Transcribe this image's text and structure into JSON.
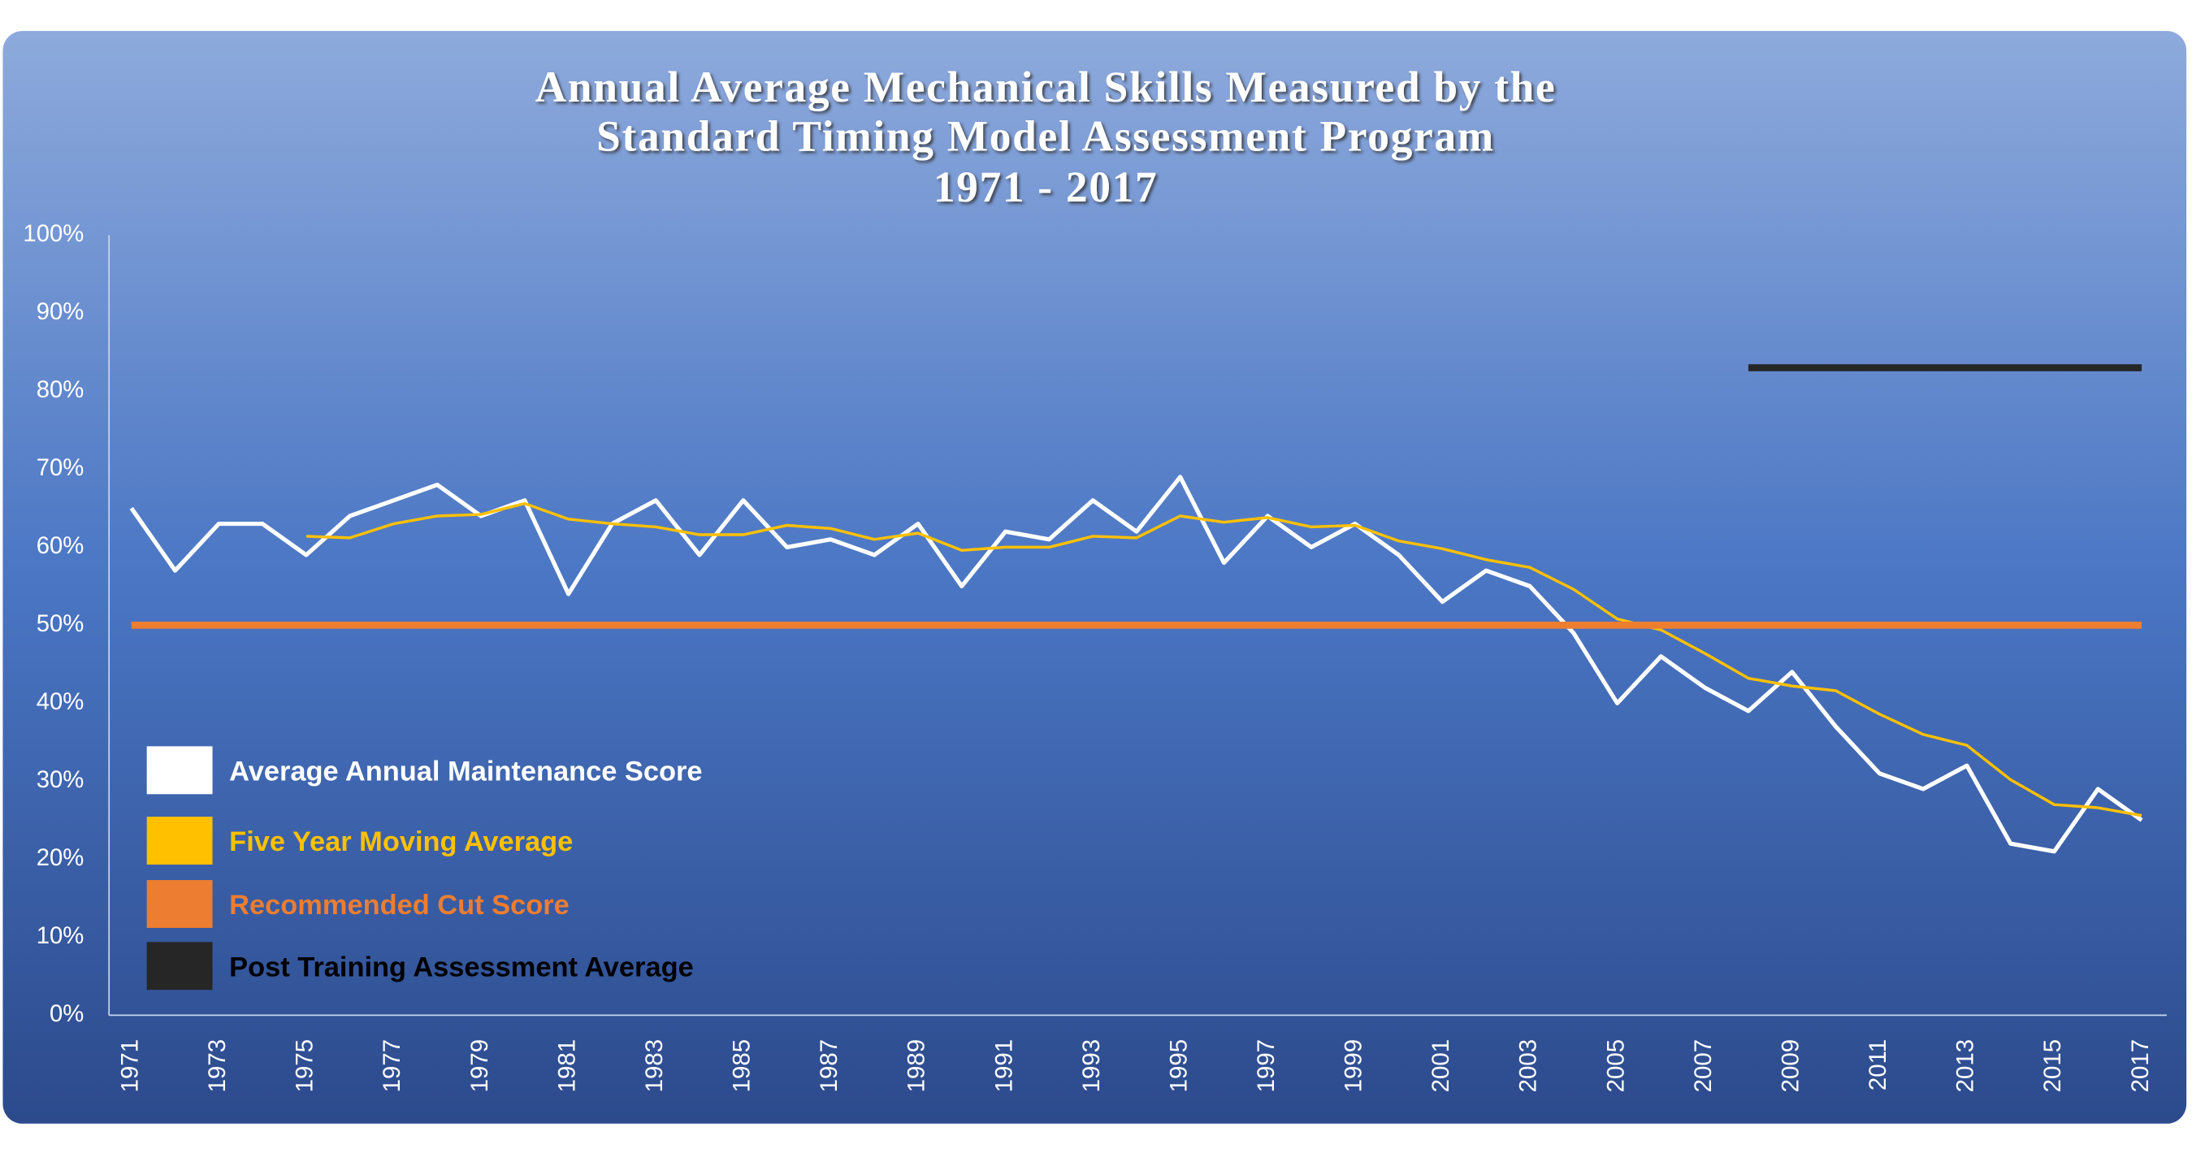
{
  "chart_data": {
    "type": "line",
    "title": [
      "Annual Average Mechanical Skills Measured by the",
      "Standard Timing Model Assessment Program",
      "1971 - 2017"
    ],
    "categories": [
      "1971",
      null,
      "1973",
      null,
      "1975",
      null,
      "1977",
      null,
      "1979",
      null,
      "1981",
      null,
      "1983",
      null,
      "1985",
      null,
      "1987",
      null,
      "1989",
      null,
      "1991",
      null,
      "1993",
      null,
      "1995",
      null,
      "1997",
      null,
      "1999",
      null,
      "2001",
      null,
      "2003",
      null,
      "2005",
      null,
      "2007",
      null,
      "2009",
      null,
      "2011",
      null,
      "2013",
      null,
      "2015",
      null,
      "2017"
    ],
    "series": [
      {
        "name": "Average Annual Maintenance Score",
        "color": "#ffffff",
        "width": 3,
        "values": [
          65,
          57,
          63,
          63,
          59,
          64,
          66,
          68,
          64,
          66,
          54,
          63,
          66,
          59,
          66,
          60,
          61,
          59,
          63,
          55,
          62,
          61,
          66,
          62,
          69,
          58,
          64,
          60,
          63,
          59,
          53,
          57,
          55,
          49,
          40,
          46,
          42,
          39,
          44,
          37,
          31,
          29,
          32,
          22,
          21,
          29,
          25
        ]
      },
      {
        "name": "Five Year Moving Average",
        "color": "#ffc000",
        "width": 2,
        "values": [
          null,
          null,
          null,
          null,
          61.4,
          61.2,
          63,
          64,
          64.2,
          65.6,
          63.6,
          63,
          62.6,
          61.6,
          61.6,
          62.8,
          62.4,
          61,
          61.8,
          59.6,
          60,
          60,
          61.4,
          61.2,
          64,
          63.2,
          63.8,
          62.6,
          62.8,
          60.8,
          59.8,
          58.4,
          57.4,
          54.6,
          50.8,
          49.4,
          46.4,
          43.2,
          42.2,
          41.6,
          38.6,
          36,
          34.6,
          30.2,
          27,
          26.6,
          25.6
        ]
      },
      {
        "name": "Recommended Cut Score",
        "color": "#ed7d31",
        "width": 5,
        "values": [
          50,
          50,
          50,
          50,
          50,
          50,
          50,
          50,
          50,
          50,
          50,
          50,
          50,
          50,
          50,
          50,
          50,
          50,
          50,
          50,
          50,
          50,
          50,
          50,
          50,
          50,
          50,
          50,
          50,
          50,
          50,
          50,
          50,
          50,
          50,
          50,
          50,
          50,
          50,
          50,
          50,
          50,
          50,
          50,
          50,
          50,
          50
        ]
      },
      {
        "name": "Post Training Assessment Average",
        "color": "#262626",
        "width": 5,
        "values": [
          null,
          null,
          null,
          null,
          null,
          null,
          null,
          null,
          null,
          null,
          null,
          null,
          null,
          null,
          null,
          null,
          null,
          null,
          null,
          null,
          null,
          null,
          null,
          null,
          null,
          null,
          null,
          null,
          null,
          null,
          null,
          null,
          null,
          null,
          null,
          null,
          null,
          83,
          83,
          83,
          83,
          83,
          83,
          83,
          83,
          83,
          83
        ]
      }
    ],
    "ylim": [
      0,
      100
    ],
    "yticks": [
      {
        "value": 0,
        "label": "0%"
      },
      {
        "value": 10,
        "label": "10%"
      },
      {
        "value": 20,
        "label": "20%"
      },
      {
        "value": 30,
        "label": "30%"
      },
      {
        "value": 40,
        "label": "40%"
      },
      {
        "value": 50,
        "label": "50%"
      },
      {
        "value": 60,
        "label": "60%"
      },
      {
        "value": 70,
        "label": "70%"
      },
      {
        "value": 80,
        "label": "80%"
      },
      {
        "value": 90,
        "label": "90%"
      },
      {
        "value": 100,
        "label": "100%"
      }
    ]
  }
}
